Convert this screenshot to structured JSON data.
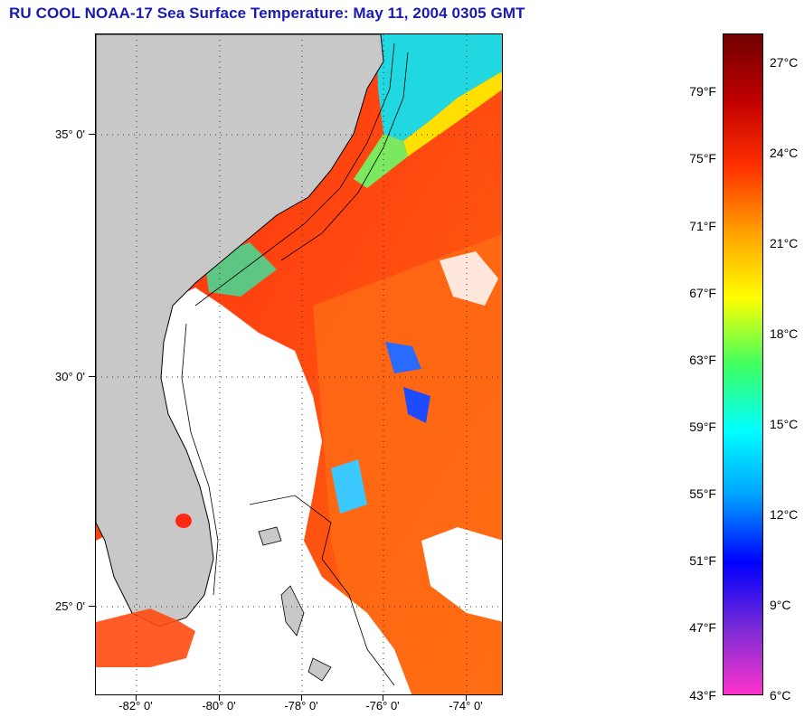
{
  "title": "RU COOL  NOAA-17  Sea Surface Temperature:  May 11, 2004 0305 GMT",
  "map": {
    "latitude_labels": [
      "35° 0'",
      "30° 0'",
      "25° 0'"
    ],
    "longitude_labels": [
      "-82° 0'",
      "-80° 0'",
      "-78° 0'",
      "-76° 0'",
      "-74° 0'"
    ],
    "land_color": "#c8c8c8",
    "cloud_color": "#ffffff",
    "grid": "dotted"
  },
  "colorbar": {
    "fahrenheit_labels": [
      "79°F",
      "75°F",
      "71°F",
      "67°F",
      "63°F",
      "59°F",
      "55°F",
      "51°F",
      "47°F",
      "43°F"
    ],
    "celsius_labels": [
      "27°C",
      "24°C",
      "21°C",
      "18°C",
      "15°C",
      "12°C",
      "9°C",
      "6°C"
    ],
    "range_f": [
      43,
      82
    ],
    "colors": [
      "#ff33cc",
      "#7a2bd6",
      "#0000ff",
      "#00a0ff",
      "#00ffff",
      "#40ff60",
      "#ffff00",
      "#ffa000",
      "#ff3000",
      "#c00000",
      "#700000"
    ]
  }
}
